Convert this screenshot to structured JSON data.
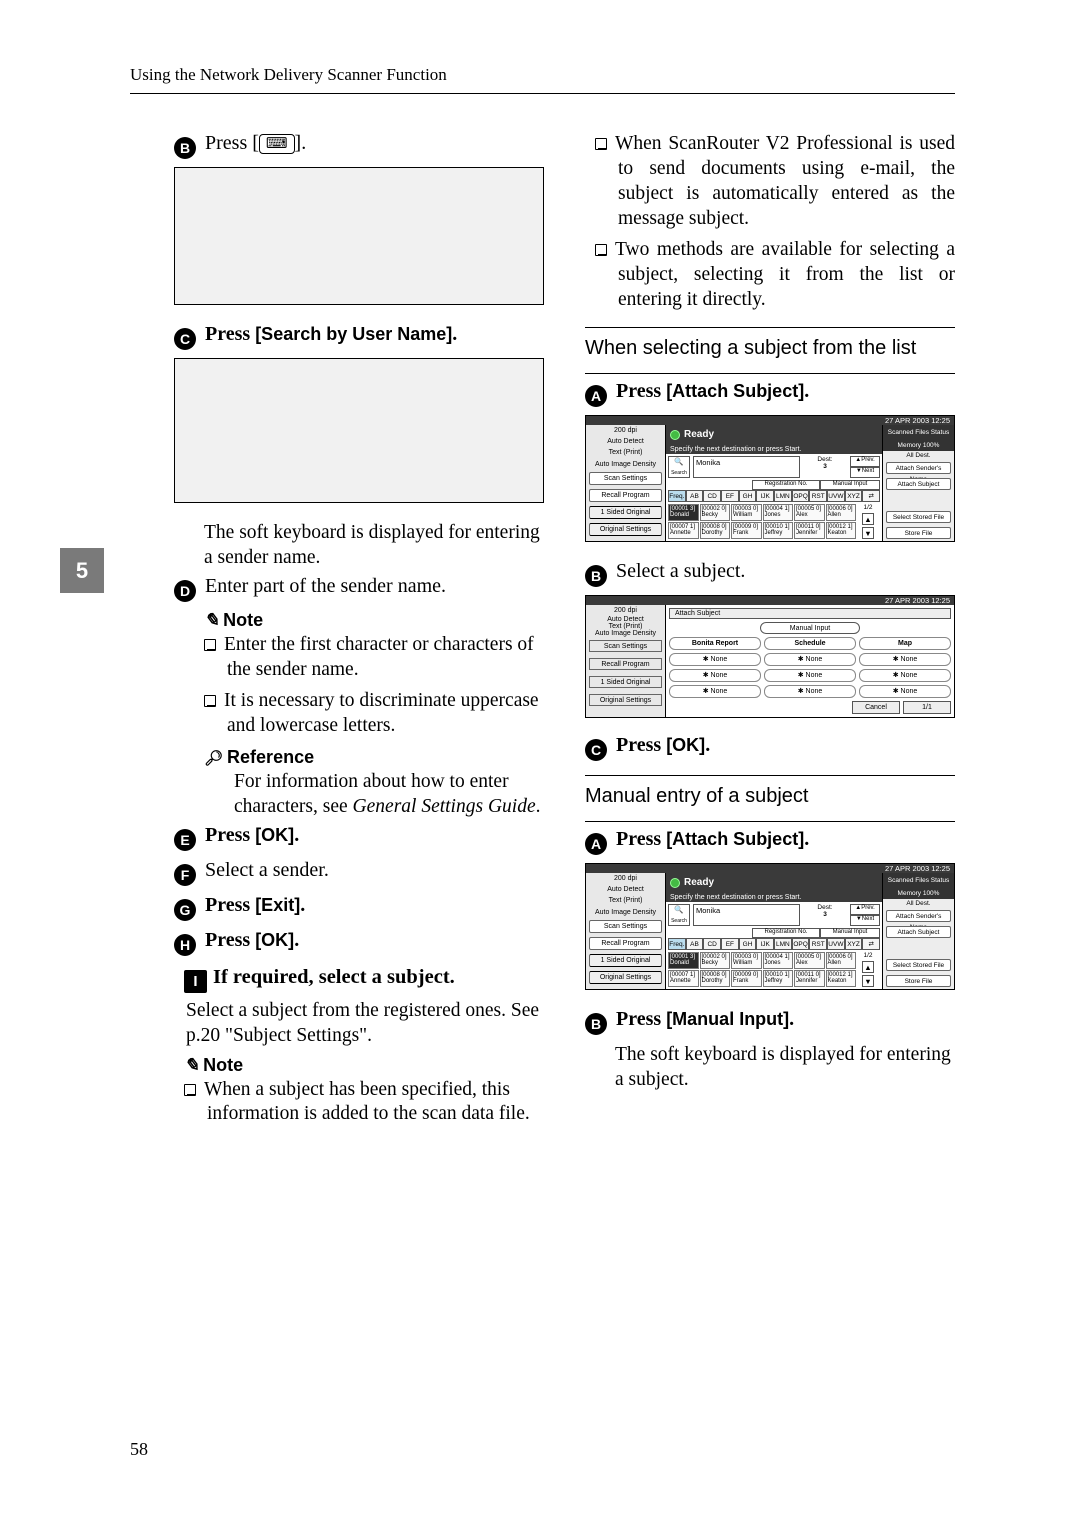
{
  "header": "Using the Network Delivery Scanner Function",
  "chapter_tab": "5",
  "page_number": "58",
  "left": {
    "step_b": {
      "num": "B",
      "text": "Press [",
      "key": "⌨",
      "tail": "]."
    },
    "step_c": {
      "num": "C",
      "lead": "Press ",
      "btn": "[Search by User Name]",
      "tail": "."
    },
    "softkb_text": "The soft keyboard is displayed for entering a sender name.",
    "step_d": {
      "num": "D",
      "text": "Enter part of the sender name."
    },
    "note_label": "Note",
    "note_items": [
      "Enter the first character or characters of the sender name.",
      "It is necessary to discriminate uppercase and lowercase letters."
    ],
    "ref_label": "Reference",
    "ref_text_a": "For information about how to enter characters, see ",
    "ref_text_i": "General Settings Guide",
    "ref_text_b": ".",
    "step_e": {
      "num": "E",
      "lead": "Press ",
      "btn": "[OK]",
      "tail": "."
    },
    "step_f": {
      "num": "F",
      "text": "Select a sender."
    },
    "step_g": {
      "num": "G",
      "lead": "Press ",
      "btn": "[Exit]",
      "tail": "."
    },
    "step_h": {
      "num": "H",
      "lead": "Press ",
      "btn": "[OK]",
      "tail": "."
    },
    "bigstep_i": {
      "num": "I",
      "text": "If required, select a subject."
    },
    "bigstep_body": "Select a subject from the registered ones. See p.20 \"Subject Settings\".",
    "note2_label": "Note",
    "note2_items": [
      "When a subject has been specified, this information is added to the scan data file."
    ]
  },
  "right": {
    "intro_items": [
      "When ScanRouter V2 Professional is used to send documents using e-mail, the subject is automatically entered as the message subject.",
      "Two methods are available for selecting a subject, selecting it from the list or entering it directly."
    ],
    "sec1_title": "When selecting a subject from the list",
    "s1_a": {
      "num": "A",
      "lead": "Press ",
      "btn": "[Attach Subject]",
      "tail": "."
    },
    "s1_b": {
      "num": "B",
      "text": "Select a subject."
    },
    "s1_c": {
      "num": "C",
      "lead": "Press ",
      "btn": "[OK]",
      "tail": "."
    },
    "sec2_title": "Manual entry of a subject",
    "s2_a": {
      "num": "A",
      "lead": "Press ",
      "btn": "[Attach Subject]",
      "tail": "."
    },
    "s2_b": {
      "num": "B",
      "lead": "Press ",
      "btn": "[Manual Input]",
      "tail": "."
    },
    "s2_softkb": "The soft keyboard is displayed for entering a subject."
  },
  "ui": {
    "status": "27 APR  2003 12:25",
    "ready": "Ready",
    "subready": "Specify the next destination or press Start.",
    "left_lbls": [
      "200 dpi",
      "Auto Detect",
      "Text (Print)",
      "Auto Image Density"
    ],
    "left_btns": [
      "Scan Settings",
      "Recall Program",
      "1 Sided Original",
      "Original Settings"
    ],
    "tabs": [
      "Freq.",
      "AB",
      "CD",
      "EF",
      "GH",
      "IJK",
      "LMN",
      "OPQ",
      "RST",
      "UVW",
      "XYZ"
    ],
    "ext_tabs": [
      "Registration No.",
      "Manual Input"
    ],
    "cells": [
      [
        "00001 3",
        "Donald"
      ],
      [
        "00002 0",
        "Becky"
      ],
      [
        "00003 0",
        "William"
      ],
      [
        "00004 1",
        "Jones"
      ],
      [
        "00005 0",
        "Alex"
      ],
      [
        "00006 0",
        "Allen"
      ],
      [
        "00007 1",
        "Annette"
      ],
      [
        "00008 0",
        "Dorothy"
      ],
      [
        "00009 0",
        "Frank"
      ],
      [
        "00010 1",
        "Jeffrey"
      ],
      [
        "00011 0",
        "Jennifer"
      ],
      [
        "00012 1",
        "Keaton"
      ]
    ],
    "rside_hd1": "Scanned Files Status",
    "rside_hd1b": "Memory 100%",
    "rside_btns": [
      "Attach Sender's Name",
      "Attach Subject",
      "Select Stored File",
      "Store File"
    ],
    "rside_dest": "Dest:",
    "rside_dest_n": "3",
    "prev": "▲Prev.",
    "next": "▼Next",
    "nav": "1/2",
    "r2_title": "All Dest."
  },
  "ui2": {
    "bar": "Attach Subject",
    "mi": "Manual Input",
    "rows": [
      [
        "Bonita Report",
        "Schedule",
        "Map"
      ],
      [
        "✱ None",
        "✱ None",
        "✱ None"
      ],
      [
        "✱ None",
        "✱ None",
        "✱ None"
      ],
      [
        "✱ None",
        "✱ None",
        "✱ None"
      ]
    ],
    "cancel": "Cancel",
    "page": "1/1"
  }
}
